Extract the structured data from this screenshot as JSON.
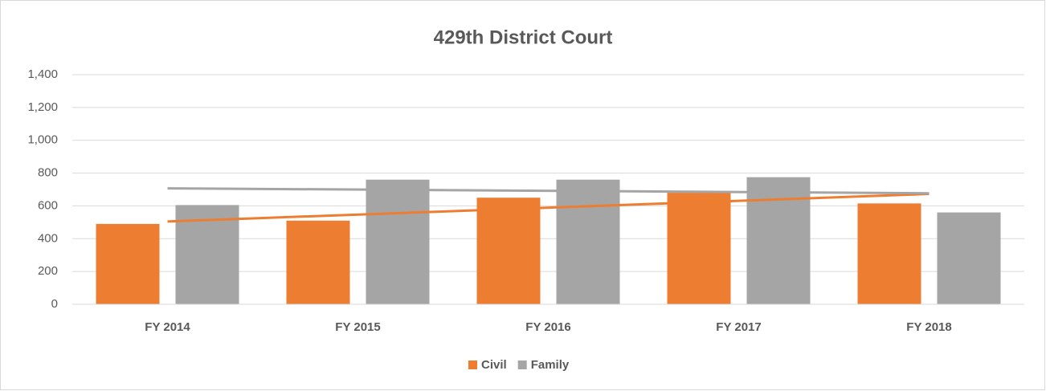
{
  "chart_data": {
    "type": "bar",
    "title": "429th District Court",
    "categories": [
      "FY 2014",
      "FY 2015",
      "FY 2016",
      "FY 2017",
      "FY 2018"
    ],
    "series": [
      {
        "name": "Civil",
        "color": "#ed7d31",
        "values": [
          490,
          510,
          650,
          680,
          615
        ]
      },
      {
        "name": "Family",
        "color": "#a5a5a5",
        "values": [
          605,
          760,
          760,
          775,
          560
        ]
      }
    ],
    "ylim": [
      0,
      1400
    ],
    "yticks": [
      0,
      200,
      400,
      600,
      800,
      {
        "value": 1000,
        "label": "1,000"
      },
      {
        "value": 1200,
        "label": "1,200"
      },
      {
        "value": 1400,
        "label": "1,400"
      }
    ],
    "grid": true,
    "trendline": true,
    "legend": "bottom"
  }
}
